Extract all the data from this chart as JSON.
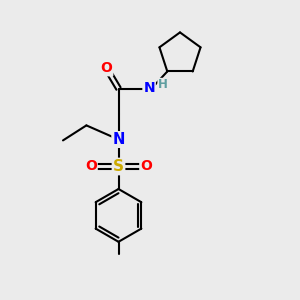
{
  "bg_color": "#ebebeb",
  "atom_colors": {
    "C": "#000000",
    "N": "#0000ff",
    "O": "#ff0000",
    "S": "#ccaa00",
    "H": "#5f9ea0"
  },
  "bond_color": "#000000",
  "bond_width": 1.5,
  "figsize": [
    3.0,
    3.0
  ],
  "dpi": 100,
  "xlim": [
    0,
    10
  ],
  "ylim": [
    0,
    10
  ]
}
